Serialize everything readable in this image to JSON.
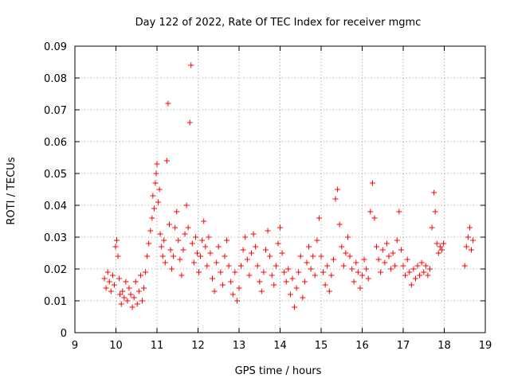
{
  "chart_data": {
    "type": "scatter",
    "title": "Day 122 of 2022, Rate Of TEC Index for receiver mgmc",
    "xlabel": "GPS time / hours",
    "ylabel": "ROTI / TECUs",
    "xlim": [
      9,
      19
    ],
    "ylim": [
      0,
      0.09
    ],
    "xticks": [
      "9",
      "10",
      "11",
      "12",
      "13",
      "14",
      "15",
      "16",
      "17",
      "18",
      "19"
    ],
    "yticks": [
      "0",
      "0.01",
      "0.02",
      "0.03",
      "0.04",
      "0.05",
      "0.06",
      "0.07",
      "0.08",
      "0.09"
    ],
    "grid": true,
    "legend": "none",
    "marker": "plus",
    "color": "#ff0000",
    "points": [
      [
        9.72,
        0.017
      ],
      [
        9.76,
        0.014
      ],
      [
        9.8,
        0.019
      ],
      [
        9.84,
        0.016
      ],
      [
        9.88,
        0.013
      ],
      [
        9.92,
        0.018
      ],
      [
        9.96,
        0.015
      ],
      [
        9.99,
        0.027
      ],
      [
        10.02,
        0.029
      ],
      [
        10.05,
        0.024
      ],
      [
        10.08,
        0.017
      ],
      [
        10.1,
        0.012
      ],
      [
        10.13,
        0.009
      ],
      [
        10.16,
        0.013
      ],
      [
        10.2,
        0.011
      ],
      [
        10.24,
        0.016
      ],
      [
        10.28,
        0.01
      ],
      [
        10.32,
        0.014
      ],
      [
        10.36,
        0.012
      ],
      [
        10.4,
        0.008
      ],
      [
        10.44,
        0.011
      ],
      [
        10.48,
        0.016
      ],
      [
        10.52,
        0.009
      ],
      [
        10.56,
        0.013
      ],
      [
        10.6,
        0.018
      ],
      [
        10.64,
        0.01
      ],
      [
        10.68,
        0.014
      ],
      [
        10.72,
        0.019
      ],
      [
        10.76,
        0.024
      ],
      [
        10.8,
        0.028
      ],
      [
        10.84,
        0.032
      ],
      [
        10.88,
        0.036
      ],
      [
        10.9,
        0.043
      ],
      [
        10.93,
        0.039
      ],
      [
        10.96,
        0.047
      ],
      [
        10.98,
        0.05
      ],
      [
        11.0,
        0.053
      ],
      [
        11.03,
        0.041
      ],
      [
        11.06,
        0.045
      ],
      [
        11.08,
        0.031
      ],
      [
        11.11,
        0.027
      ],
      [
        11.14,
        0.024
      ],
      [
        11.17,
        0.029
      ],
      [
        11.2,
        0.022
      ],
      [
        11.24,
        0.054
      ],
      [
        11.27,
        0.072
      ],
      [
        11.3,
        0.034
      ],
      [
        11.33,
        0.026
      ],
      [
        11.36,
        0.02
      ],
      [
        11.4,
        0.024
      ],
      [
        11.44,
        0.033
      ],
      [
        11.48,
        0.038
      ],
      [
        11.52,
        0.029
      ],
      [
        11.56,
        0.023
      ],
      [
        11.6,
        0.018
      ],
      [
        11.64,
        0.026
      ],
      [
        11.68,
        0.031
      ],
      [
        11.72,
        0.04
      ],
      [
        11.76,
        0.033
      ],
      [
        11.8,
        0.066
      ],
      [
        11.83,
        0.084
      ],
      [
        11.86,
        0.028
      ],
      [
        11.9,
        0.022
      ],
      [
        11.94,
        0.03
      ],
      [
        11.98,
        0.025
      ],
      [
        12.02,
        0.019
      ],
      [
        12.06,
        0.024
      ],
      [
        12.1,
        0.029
      ],
      [
        12.14,
        0.035
      ],
      [
        12.18,
        0.027
      ],
      [
        12.22,
        0.021
      ],
      [
        12.26,
        0.03
      ],
      [
        12.3,
        0.025
      ],
      [
        12.35,
        0.017
      ],
      [
        12.4,
        0.013
      ],
      [
        12.45,
        0.022
      ],
      [
        12.5,
        0.027
      ],
      [
        12.55,
        0.019
      ],
      [
        12.6,
        0.015
      ],
      [
        12.65,
        0.024
      ],
      [
        12.7,
        0.029
      ],
      [
        12.75,
        0.021
      ],
      [
        12.8,
        0.016
      ],
      [
        12.85,
        0.012
      ],
      [
        12.9,
        0.019
      ],
      [
        12.95,
        0.01
      ],
      [
        13.0,
        0.014
      ],
      [
        13.05,
        0.021
      ],
      [
        13.1,
        0.026
      ],
      [
        13.15,
        0.03
      ],
      [
        13.2,
        0.023
      ],
      [
        13.25,
        0.018
      ],
      [
        13.3,
        0.025
      ],
      [
        13.35,
        0.031
      ],
      [
        13.4,
        0.027
      ],
      [
        13.45,
        0.021
      ],
      [
        13.5,
        0.016
      ],
      [
        13.55,
        0.013
      ],
      [
        13.6,
        0.019
      ],
      [
        13.65,
        0.026
      ],
      [
        13.7,
        0.032
      ],
      [
        13.75,
        0.024
      ],
      [
        13.8,
        0.018
      ],
      [
        13.85,
        0.015
      ],
      [
        13.9,
        0.021
      ],
      [
        13.95,
        0.028
      ],
      [
        14.0,
        0.033
      ],
      [
        14.05,
        0.025
      ],
      [
        14.1,
        0.019
      ],
      [
        14.15,
        0.016
      ],
      [
        14.2,
        0.02
      ],
      [
        14.25,
        0.012
      ],
      [
        14.3,
        0.017
      ],
      [
        14.35,
        0.008
      ],
      [
        14.4,
        0.014
      ],
      [
        14.45,
        0.019
      ],
      [
        14.5,
        0.024
      ],
      [
        14.55,
        0.011
      ],
      [
        14.6,
        0.016
      ],
      [
        14.65,
        0.022
      ],
      [
        14.7,
        0.027
      ],
      [
        14.75,
        0.02
      ],
      [
        14.8,
        0.024
      ],
      [
        14.85,
        0.018
      ],
      [
        14.9,
        0.029
      ],
      [
        14.95,
        0.036
      ],
      [
        15.0,
        0.024
      ],
      [
        15.05,
        0.019
      ],
      [
        15.1,
        0.015
      ],
      [
        15.15,
        0.021
      ],
      [
        15.2,
        0.013
      ],
      [
        15.25,
        0.018
      ],
      [
        15.3,
        0.023
      ],
      [
        15.35,
        0.042
      ],
      [
        15.4,
        0.045
      ],
      [
        15.45,
        0.034
      ],
      [
        15.5,
        0.027
      ],
      [
        15.55,
        0.021
      ],
      [
        15.6,
        0.025
      ],
      [
        15.65,
        0.03
      ],
      [
        15.7,
        0.024
      ],
      [
        15.75,
        0.02
      ],
      [
        15.8,
        0.016
      ],
      [
        15.85,
        0.022
      ],
      [
        15.9,
        0.019
      ],
      [
        15.95,
        0.014
      ],
      [
        16.0,
        0.018
      ],
      [
        16.05,
        0.023
      ],
      [
        16.1,
        0.02
      ],
      [
        16.15,
        0.017
      ],
      [
        16.2,
        0.038
      ],
      [
        16.25,
        0.047
      ],
      [
        16.3,
        0.036
      ],
      [
        16.35,
        0.027
      ],
      [
        16.4,
        0.023
      ],
      [
        16.45,
        0.019
      ],
      [
        16.5,
        0.026
      ],
      [
        16.55,
        0.022
      ],
      [
        16.6,
        0.028
      ],
      [
        16.65,
        0.024
      ],
      [
        16.7,
        0.02
      ],
      [
        16.75,
        0.025
      ],
      [
        16.8,
        0.021
      ],
      [
        16.85,
        0.029
      ],
      [
        16.9,
        0.038
      ],
      [
        16.95,
        0.026
      ],
      [
        17.0,
        0.021
      ],
      [
        17.05,
        0.018
      ],
      [
        17.1,
        0.023
      ],
      [
        17.15,
        0.019
      ],
      [
        17.2,
        0.015
      ],
      [
        17.25,
        0.02
      ],
      [
        17.3,
        0.017
      ],
      [
        17.35,
        0.021
      ],
      [
        17.4,
        0.018
      ],
      [
        17.45,
        0.022
      ],
      [
        17.5,
        0.019
      ],
      [
        17.55,
        0.021
      ],
      [
        17.6,
        0.018
      ],
      [
        17.65,
        0.02
      ],
      [
        17.7,
        0.033
      ],
      [
        17.75,
        0.044
      ],
      [
        17.78,
        0.038
      ],
      [
        17.82,
        0.028
      ],
      [
        17.86,
        0.025
      ],
      [
        17.9,
        0.027
      ],
      [
        17.94,
        0.026
      ],
      [
        17.98,
        0.028
      ],
      [
        18.5,
        0.021
      ],
      [
        18.54,
        0.027
      ],
      [
        18.58,
        0.03
      ],
      [
        18.62,
        0.033
      ],
      [
        18.66,
        0.026
      ],
      [
        18.7,
        0.029
      ]
    ]
  }
}
